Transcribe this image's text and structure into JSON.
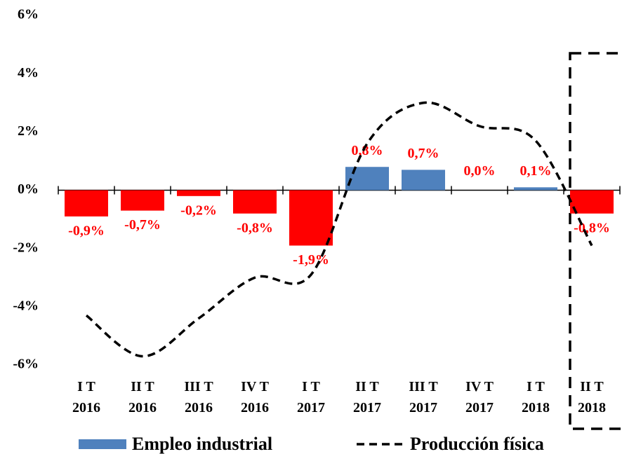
{
  "chart_data": {
    "type": "bar",
    "categories": [
      "I T\n2016",
      "II T\n2016",
      "III T\n2016",
      "IV T\n2016",
      "I T\n2017",
      "II T\n2017",
      "III T\n2017",
      "IV T\n2017",
      "I T\n2018",
      "II T\n2018"
    ],
    "series": [
      {
        "name": "Empleo industrial",
        "type": "bar",
        "color": "#4f81bd",
        "negative_color": "#ff0000",
        "values": [
          -0.9,
          -0.7,
          -0.2,
          -0.8,
          -1.9,
          0.8,
          0.7,
          0.0,
          0.1,
          -0.8
        ],
        "value_labels": [
          "-0,9%",
          "-0,7%",
          "-0,2%",
          "-0,8%",
          "-1,9%",
          "0,8%",
          "0,7%",
          "0,0%",
          "0,1%",
          "-0,8%"
        ],
        "label_color": "#ff0000"
      },
      {
        "name": "Producción física",
        "type": "line",
        "color": "#000000",
        "dashed": true,
        "values": [
          -4.3,
          -5.7,
          -4.4,
          -3.0,
          -2.9,
          1.6,
          3.0,
          2.2,
          1.7,
          -1.9
        ]
      }
    ],
    "ylim": [
      -6,
      6
    ],
    "yticks": [
      {
        "value": -6,
        "label": "-6%"
      },
      {
        "value": -4,
        "label": "-4%"
      },
      {
        "value": -2,
        "label": "-2%"
      },
      {
        "value": 0,
        "label": "0%"
      },
      {
        "value": 2,
        "label": "2%"
      },
      {
        "value": 4,
        "label": "4%"
      },
      {
        "value": 6,
        "label": "6%"
      }
    ],
    "grid": false,
    "legend": "bottom"
  }
}
